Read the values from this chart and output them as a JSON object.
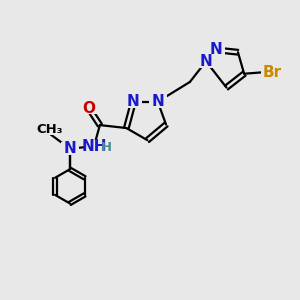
{
  "background_color": "#e8e8e8",
  "atom_colors": {
    "N": "#1a1acc",
    "O": "#cc0000",
    "Br": "#cc8800",
    "C": "#000000",
    "H": "#4a9090"
  },
  "bond_color": "#000000",
  "bond_width": 1.6,
  "font_size_atom": 11,
  "font_size_small": 9.5
}
